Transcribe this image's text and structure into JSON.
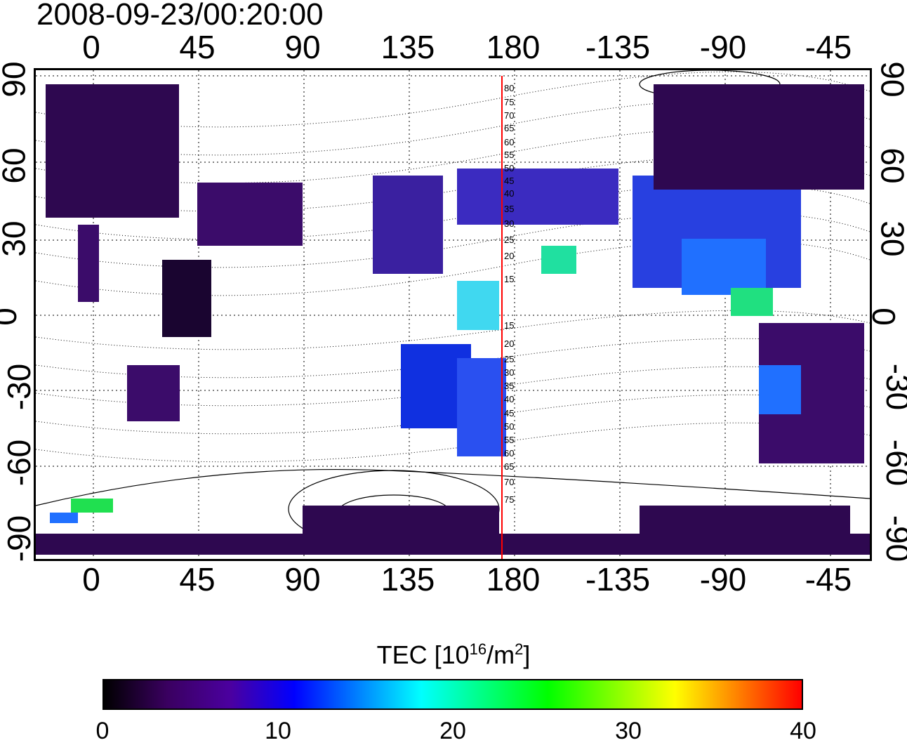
{
  "title": "2008-09-23/00:20:00",
  "lon_ticks": [
    "0",
    "45",
    "90",
    "135",
    "180",
    "-135",
    "-90",
    "-45"
  ],
  "lat_ticks": [
    "90",
    "60",
    "30",
    "0",
    "-30",
    "-60",
    "-90"
  ],
  "colorbar": {
    "label_prefix": "TEC  [10",
    "label_exp": "16",
    "label_mid": "/m",
    "label_exp2": "2",
    "label_suffix": "]",
    "ticks": [
      "0",
      "10",
      "20",
      "30",
      "40"
    ],
    "range": [
      0,
      40
    ],
    "colors": [
      "#000000",
      "#3a0060",
      "#4b00a0",
      "#0000ff",
      "#0080ff",
      "#00ffff",
      "#00ff80",
      "#00ff00",
      "#80ff00",
      "#ffff00",
      "#ff8000",
      "#ff0000"
    ]
  },
  "meridian_line_color": "#ff0000",
  "mlat_labels_north": [
    "80",
    "75",
    "70",
    "65",
    "60",
    "55",
    "50",
    "45",
    "40",
    "35",
    "30",
    "25",
    "20",
    "15"
  ],
  "mlat_labels_south": [
    "15",
    "20",
    "25",
    "30",
    "35",
    "40",
    "45",
    "50",
    "55",
    "60",
    "65",
    "70",
    "75"
  ]
}
